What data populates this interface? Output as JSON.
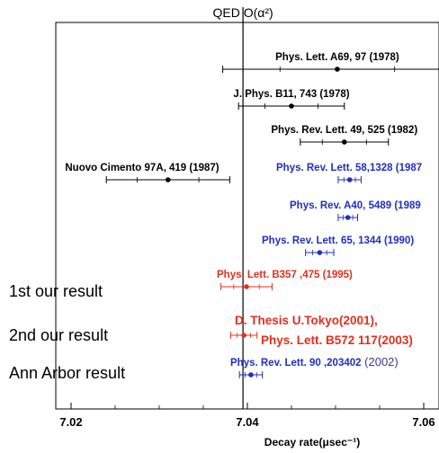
{
  "colors": {
    "black": "#000000",
    "blue": "#1f2fbf",
    "red": "#e0301e",
    "year_gray": "#3a3a8a"
  },
  "chart_data": {
    "type": "scatter",
    "title": "QED O(α²)",
    "theory_value": 7.0395,
    "xlabel": "Decay rate(μsec⁻¹)",
    "xlim": [
      7.02,
      7.07
    ],
    "xticks": [
      7.02,
      7.04,
      7.06
    ],
    "xtick_labels": [
      "7.02",
      "7.04",
      "7.06"
    ],
    "row_labels": [
      {
        "text": "1st our result",
        "row": 9
      },
      {
        "text": "2nd our result",
        "row": 10
      },
      {
        "text": "Ann Arbor result",
        "row": 11
      }
    ],
    "points": [
      {
        "row": 0,
        "value": 7.0502,
        "err": 0.013,
        "color": "black",
        "label_lines": [
          "Phys. Lett. A69, 97 (1978)"
        ]
      },
      {
        "row": 1,
        "value": 7.045,
        "err": 0.006,
        "color": "black",
        "label_lines": [
          "J. Phys. B11, 743 (1978)"
        ]
      },
      {
        "row": 2,
        "value": 7.051,
        "err": 0.005,
        "color": "black",
        "label_lines": [
          "Phys. Rev. Lett. 49, 525 (1982)"
        ]
      },
      {
        "row": 3,
        "value": 7.031,
        "err": 0.007,
        "color": "black",
        "label_lines": [
          "Nuovo Cimento 97A, 419 (1987)"
        ]
      },
      {
        "row": 3,
        "value": 7.0516,
        "err": 0.0013,
        "color": "blue",
        "label_lines": [
          "Phys. Rev. Lett. 58,1328 (1987"
        ]
      },
      {
        "row": 4,
        "value": 7.0514,
        "err": 0.0011,
        "color": "blue",
        "label_lines": [
          "Phys. Rev. A40, 5489 (1989"
        ]
      },
      {
        "row": 5,
        "value": 7.0482,
        "err": 0.0016,
        "color": "blue",
        "label_lines": [
          "Phys. Rev. Lett. 65, 1344 (1990)"
        ]
      },
      {
        "row": 6,
        "value": 7.0399,
        "err": 0.0029,
        "color": "red",
        "label_lines": [
          "Phys. Lett. B357 ,475 (1995)"
        ]
      },
      {
        "row": 7,
        "value": 7.0396,
        "err": 0.0015,
        "color": "red",
        "label_lines": [
          "D. Thesis U.Tokyo(2001),",
          "Phys. Lett. B572 117(2003)"
        ]
      },
      {
        "row": 8,
        "value": 7.0404,
        "err": 0.0013,
        "color": "blue",
        "label_lines": [
          "Phys. Rev. Lett. 90 ,203402"
        ],
        "label_suffix": " (2002)"
      }
    ]
  }
}
